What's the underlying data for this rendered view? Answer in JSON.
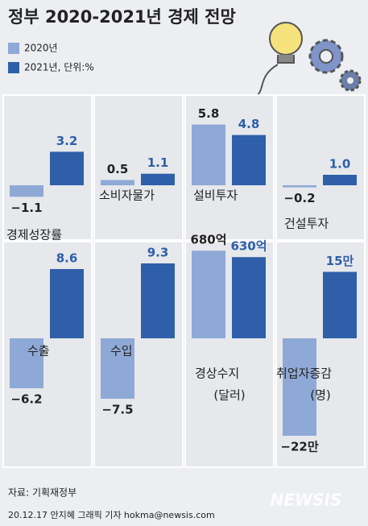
{
  "title": "정부 2020-2021년 경제 전망",
  "legend": [
    {
      "name": "2020년",
      "color": "#8fa9d6"
    },
    {
      "name": "2021년, 단위:%",
      "color": "#2e5fa8"
    }
  ],
  "source": "자료: 기획재정부",
  "credit": "20.12.17 안지혜 그래픽 기자 hokma@newsis.com",
  "watermark": "NEWSIS",
  "chart_data": [
    {
      "type": "bar",
      "title": "경제성장률",
      "values": [
        -1.1,
        3.2
      ],
      "value_labels": [
        "−1.1",
        "3.2"
      ]
    },
    {
      "type": "bar",
      "title": "소비자물가",
      "values": [
        0.5,
        1.1
      ]
    },
    {
      "type": "bar",
      "title": "설비투자",
      "values": [
        5.8,
        4.8
      ]
    },
    {
      "type": "bar",
      "title": "건설투자",
      "values": [
        -0.2,
        1.0
      ],
      "value_labels": [
        "−0.2",
        "1.0"
      ]
    },
    {
      "type": "bar",
      "title": "수출",
      "values": [
        -6.2,
        8.6
      ],
      "value_labels": [
        "−6.2",
        "8.6"
      ]
    },
    {
      "type": "bar",
      "title": "수입",
      "values": [
        -7.5,
        9.3
      ],
      "value_labels": [
        "−7.5",
        "9.3"
      ]
    },
    {
      "type": "bar",
      "title": "경상수지",
      "subtitle": "(달러)",
      "values": [
        680,
        630
      ],
      "value_labels": [
        "680억",
        "630억"
      ]
    },
    {
      "type": "bar",
      "title": "취업자증감",
      "subtitle": "(명)",
      "values": [
        -220000,
        150000
      ],
      "value_labels": [
        "−22만",
        "15만"
      ]
    }
  ]
}
